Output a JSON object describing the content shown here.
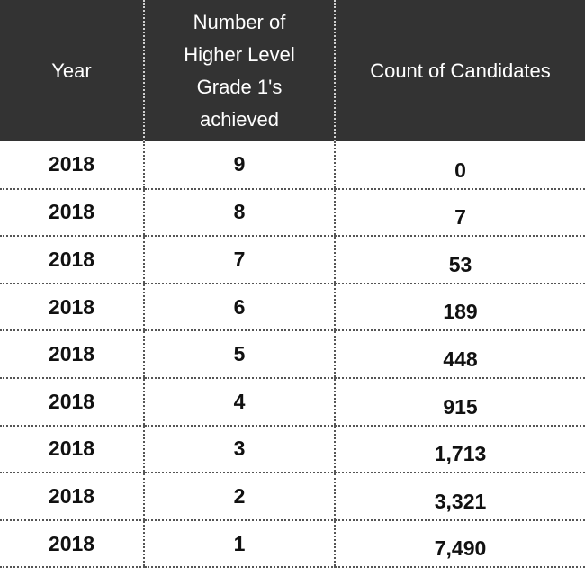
{
  "table": {
    "header": [
      "Year",
      "Number of Higher Level Grade 1's achieved",
      "Count of Candidates"
    ],
    "rows": [
      [
        "2018",
        "9",
        "0"
      ],
      [
        "2018",
        "8",
        "7"
      ],
      [
        "2018",
        "7",
        "53"
      ],
      [
        "2018",
        "6",
        "189"
      ],
      [
        "2018",
        "5",
        "448"
      ],
      [
        "2018",
        "4",
        "915"
      ],
      [
        "2018",
        "3",
        "1,713"
      ],
      [
        "2018",
        "2",
        "3,321"
      ],
      [
        "2018",
        "1",
        "7,490"
      ]
    ]
  }
}
